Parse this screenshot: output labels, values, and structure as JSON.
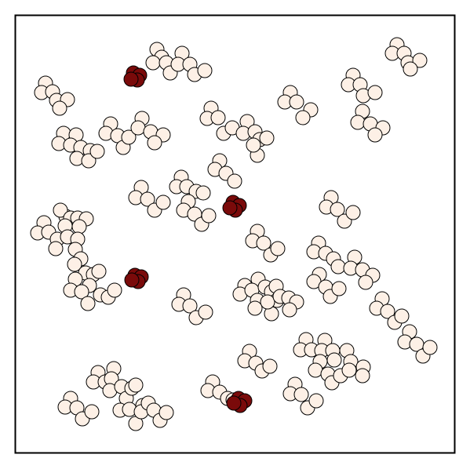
{
  "colors": {
    "background": "#ffffff",
    "frame": "#000000",
    "light_circle_fill": "#fdf0e6",
    "dark_circle_fill": "#7a0a0a",
    "outline": "#000000"
  },
  "counts": {
    "light_clusters": 36,
    "dark_clusters": 4
  }
}
